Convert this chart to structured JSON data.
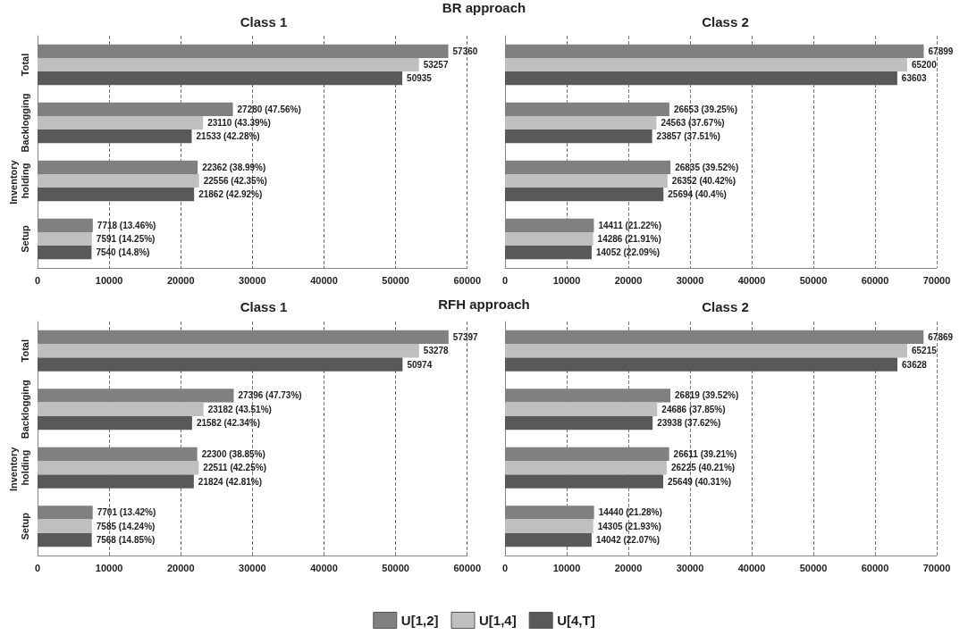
{
  "chart_data": [
    {
      "type": "bar",
      "orientation": "horizontal",
      "title": "Class 1",
      "annotations": [
        "BR approach"
      ],
      "categories": [
        "Total",
        "Backlogging",
        "Inventory holding",
        "Setup"
      ],
      "xlim": [
        0,
        60000
      ],
      "xticks": [
        0,
        10000,
        20000,
        30000,
        40000,
        50000,
        60000
      ],
      "grid": "x",
      "legend": false,
      "series": [
        {
          "color": "#808080",
          "values": [
            57360,
            27280,
            22362,
            7718
          ],
          "value_labels": [
            "57360",
            "27280 (47.56%)",
            "22362 (38.99%)",
            "7718 (13.46%)"
          ]
        },
        {
          "color": "#bfbfbf",
          "values": [
            53257,
            23110,
            22556,
            7591
          ],
          "value_labels": [
            "53257",
            "23110 (43.39%)",
            "22556 (42.35%)",
            "7591 (14.25%)"
          ]
        },
        {
          "color": "#595959",
          "values": [
            50935,
            21533,
            21862,
            7540
          ],
          "value_labels": [
            "50935",
            "21533 (42.28%)",
            "21862 (42.92%)",
            "7540 (14.8%)"
          ]
        }
      ]
    },
    {
      "type": "bar",
      "orientation": "horizontal",
      "title": "Class 2",
      "categories": [
        "Total",
        "Backlogging",
        "Inventory holding",
        "Setup"
      ],
      "xlim": [
        0,
        70000
      ],
      "xticks": [
        0,
        10000,
        20000,
        30000,
        40000,
        50000,
        60000,
        70000
      ],
      "grid": "x",
      "tick_labels": "x",
      "legend": false,
      "series": [
        {
          "color": "#808080",
          "values": [
            67899,
            26653,
            26835,
            14411
          ],
          "value_labels": [
            "67899",
            "26653 (39.25%)",
            "26835 (39.52%)",
            "14411 (21.22%)"
          ]
        },
        {
          "color": "#bfbfbf",
          "values": [
            65200,
            24563,
            26352,
            14286
          ],
          "value_labels": [
            "65200",
            "24563 (37.67%)",
            "26352 (40.42%)",
            "14286 (21.91%)"
          ]
        },
        {
          "color": "#595959",
          "values": [
            63603,
            23857,
            25694,
            14052
          ],
          "value_labels": [
            "63603",
            "23857 (37.51%)",
            "25694 (40.4%)",
            "14052 (22.09%)"
          ]
        }
      ]
    },
    {
      "type": "bar",
      "orientation": "horizontal",
      "title": "Class 1",
      "annotations": [
        "RFH approach"
      ],
      "categories": [
        "Total",
        "Backlogging",
        "Inventory holding",
        "Setup"
      ],
      "xlim": [
        0,
        60000
      ],
      "xticks": [
        0,
        10000,
        20000,
        30000,
        40000,
        50000,
        60000
      ],
      "grid": "x",
      "legend": false,
      "series": [
        {
          "color": "#808080",
          "values": [
            57397,
            27396,
            22300,
            7701
          ],
          "value_labels": [
            "57397",
            "27396 (47.73%)",
            "22300 (38.85%)",
            "7701 (13.42%)"
          ]
        },
        {
          "color": "#bfbfbf",
          "values": [
            53278,
            23182,
            22511,
            7585
          ],
          "value_labels": [
            "53278",
            "23182 (43.51%)",
            "22511 (42.25%)",
            "7585 (14.24%)"
          ]
        },
        {
          "color": "#595959",
          "values": [
            50974,
            21582,
            21824,
            7568
          ],
          "value_labels": [
            "50974",
            "21582 (42.34%)",
            "21824 (42.81%)",
            "7568 (14.85%)"
          ]
        }
      ]
    },
    {
      "type": "bar",
      "orientation": "horizontal",
      "title": "Class 2",
      "categories": [
        "Total",
        "Backlogging",
        "Inventory holding",
        "Setup"
      ],
      "xlim": [
        0,
        70000
      ],
      "xticks": [
        0,
        10000,
        20000,
        30000,
        40000,
        50000,
        60000,
        70000
      ],
      "grid": "x",
      "tick_labels": "x",
      "legend": "bottom",
      "series": [
        {
          "name": "U[1,2]",
          "color": "#808080",
          "values": [
            67869,
            26819,
            26611,
            14440
          ],
          "value_labels": [
            "67869",
            "26819 (39.52%)",
            "26611 (39.21%)",
            "14440 (21.28%)"
          ]
        },
        {
          "name": "U[1,4]",
          "color": "#bfbfbf",
          "values": [
            65215,
            24686,
            26225,
            14305
          ],
          "value_labels": [
            "65215",
            "24686 (37.85%)",
            "26225 (40.21%)",
            "14305 (21.93%)"
          ]
        },
        {
          "name": "U[4,T]",
          "color": "#595959",
          "values": [
            63628,
            23938,
            25649,
            14042
          ],
          "value_labels": [
            "63628",
            "23938 (37.62%)",
            "25649 (40.31%)",
            "14042 (22.07%)"
          ]
        }
      ]
    }
  ]
}
